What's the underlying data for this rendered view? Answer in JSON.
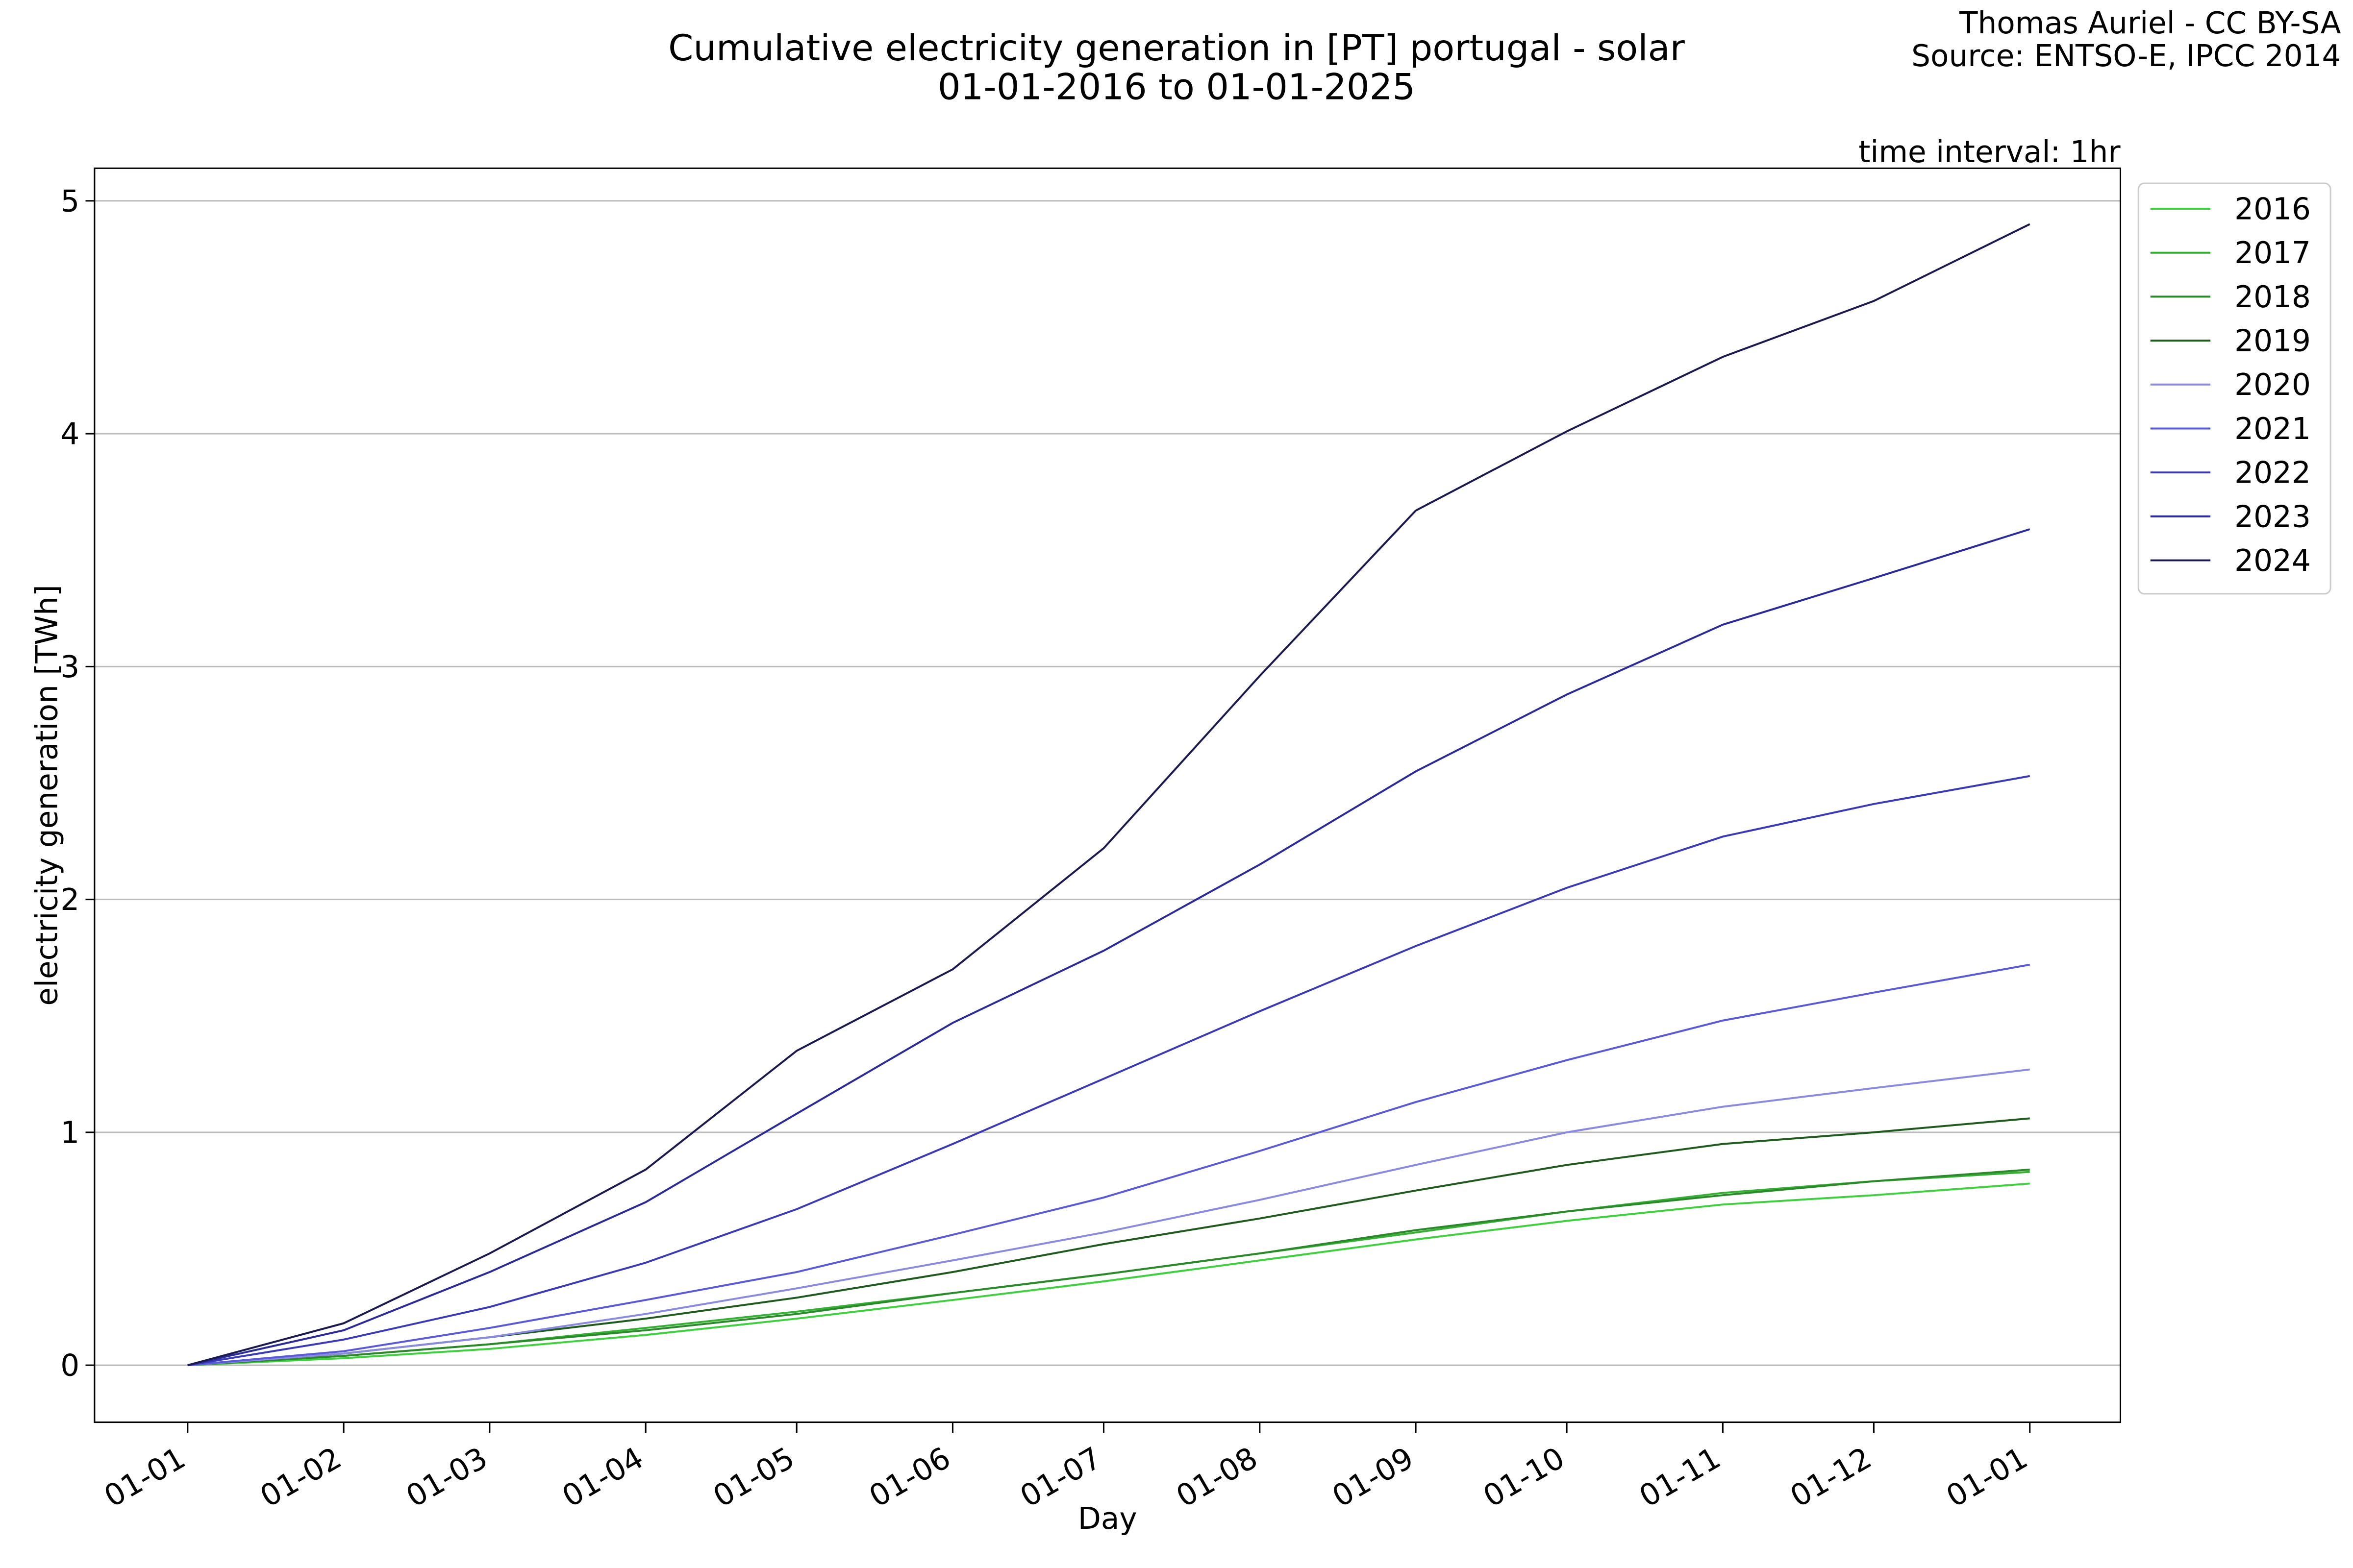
{
  "chart_data": {
    "type": "line",
    "title": "Cumulative electricity generation in [PT] portugal - solar",
    "subtitle": "01-01-2016 to 01-01-2025",
    "credits": [
      "Thomas Auriel - CC BY-SA",
      "Source: ENTSO-E, IPCC 2014"
    ],
    "annotation": "time interval: 1hr",
    "x_label": "Day",
    "y_label": "electricity generation [TWh]",
    "x": [
      0,
      31,
      60,
      91,
      121,
      152,
      182,
      213,
      244,
      274,
      305,
      335,
      366
    ],
    "series": [
      {
        "name": "2016",
        "color": "#3fd03f",
        "values": [
          0,
          0.03,
          0.07,
          0.13,
          0.2,
          0.28,
          0.36,
          0.45,
          0.54,
          0.62,
          0.69,
          0.73,
          0.78
        ]
      },
      {
        "name": "2017",
        "color": "#35b035",
        "values": [
          0,
          0.04,
          0.09,
          0.16,
          0.23,
          0.31,
          0.39,
          0.48,
          0.57,
          0.66,
          0.74,
          0.79,
          0.83
        ]
      },
      {
        "name": "2018",
        "color": "#2a8a2a",
        "values": [
          0,
          0.04,
          0.09,
          0.15,
          0.22,
          0.31,
          0.39,
          0.48,
          0.58,
          0.66,
          0.73,
          0.79,
          0.84
        ]
      },
      {
        "name": "2019",
        "color": "#1f5a1f",
        "values": [
          0,
          0.05,
          0.12,
          0.2,
          0.29,
          0.4,
          0.52,
          0.63,
          0.75,
          0.86,
          0.95,
          1.0,
          1.06
        ]
      },
      {
        "name": "2020",
        "color": "#8a8ae0",
        "values": [
          0,
          0.05,
          0.12,
          0.22,
          0.33,
          0.45,
          0.57,
          0.71,
          0.86,
          1.0,
          1.11,
          1.19,
          1.27
        ]
      },
      {
        "name": "2021",
        "color": "#5a5ad8",
        "values": [
          0,
          0.06,
          0.16,
          0.28,
          0.4,
          0.56,
          0.72,
          0.92,
          1.13,
          1.31,
          1.48,
          1.6,
          1.72
        ]
      },
      {
        "name": "2022",
        "color": "#3a3ab8",
        "values": [
          0,
          0.11,
          0.25,
          0.44,
          0.67,
          0.95,
          1.23,
          1.52,
          1.8,
          2.05,
          2.27,
          2.41,
          2.53
        ]
      },
      {
        "name": "2023",
        "color": "#2a2a9a",
        "values": [
          0,
          0.15,
          0.4,
          0.7,
          1.08,
          1.47,
          1.78,
          2.15,
          2.55,
          2.88,
          3.18,
          3.38,
          3.59
        ]
      },
      {
        "name": "2024",
        "color": "#1a1a50",
        "values": [
          0,
          0.18,
          0.48,
          0.84,
          1.35,
          1.7,
          2.22,
          2.96,
          3.67,
          4.01,
          4.33,
          4.57,
          4.9
        ]
      }
    ],
    "xlim": [
      -18.5,
      384
    ],
    "xticks": [
      {
        "value": 0,
        "label": "01-01"
      },
      {
        "value": 31,
        "label": "01-02"
      },
      {
        "value": 60,
        "label": "01-03"
      },
      {
        "value": 91,
        "label": "01-04"
      },
      {
        "value": 121,
        "label": "01-05"
      },
      {
        "value": 152,
        "label": "01-06"
      },
      {
        "value": 182,
        "label": "01-07"
      },
      {
        "value": 213,
        "label": "01-08"
      },
      {
        "value": 244,
        "label": "01-09"
      },
      {
        "value": 274,
        "label": "01-10"
      },
      {
        "value": 305,
        "label": "01-11"
      },
      {
        "value": 335,
        "label": "01-12"
      },
      {
        "value": 366,
        "label": "01-01"
      }
    ],
    "ylim": [
      -0.245,
      5.14
    ],
    "yticks": [
      0,
      1,
      2,
      3,
      4,
      5
    ],
    "grid": "y",
    "legend": "outside upper right"
  }
}
